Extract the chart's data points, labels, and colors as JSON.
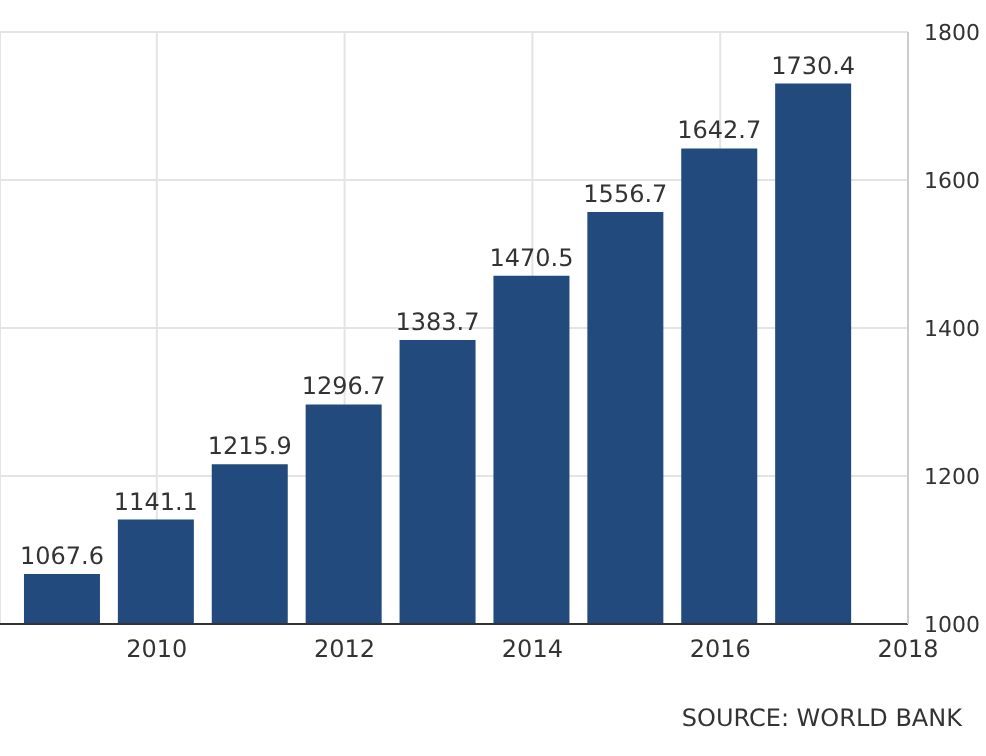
{
  "chart_data": {
    "type": "bar",
    "x": [
      2009,
      2010,
      2011,
      2012,
      2013,
      2014,
      2015,
      2016,
      2017
    ],
    "values": [
      1067.6,
      1141.1,
      1215.9,
      1296.7,
      1383.7,
      1470.5,
      1556.7,
      1642.7,
      1730.4
    ],
    "color": "#224a7d",
    "data_labels": true,
    "xlim": [
      2008.33,
      2018
    ],
    "xticks": [
      2010,
      2012,
      2014,
      2016,
      2018
    ],
    "ylim": [
      1000,
      1800
    ],
    "yticks": [
      1000,
      1200,
      1400,
      1600,
      1800
    ],
    "grid": true,
    "annotations": [
      "SOURCE: WORLD BANK"
    ]
  }
}
